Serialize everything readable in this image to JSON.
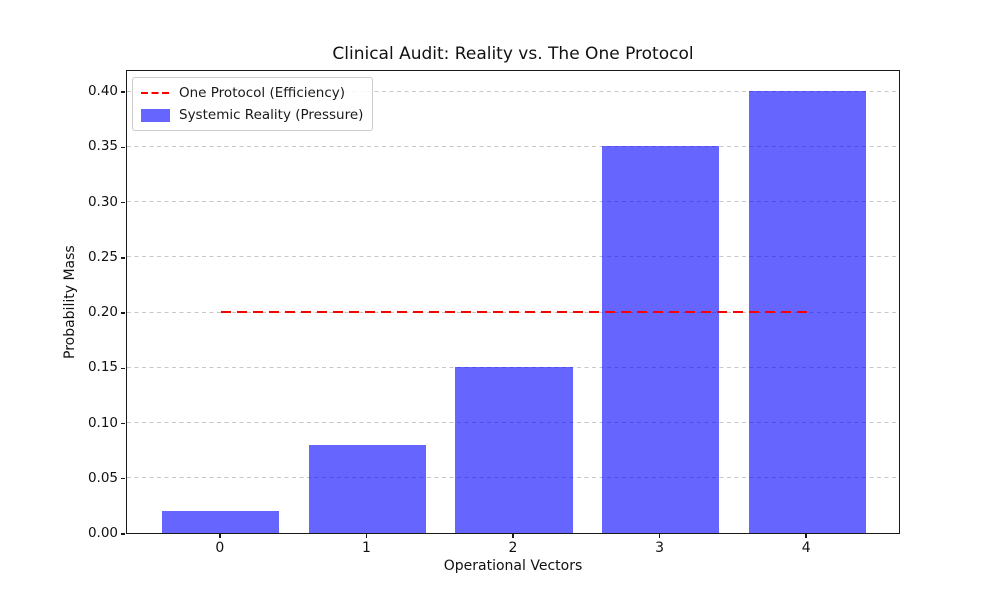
{
  "chart_data": {
    "type": "bar",
    "title": "Clinical Audit: Reality vs. The One Protocol",
    "xlabel": "Operational Vectors",
    "ylabel": "Probability Mass",
    "categories": [
      "0",
      "1",
      "2",
      "3",
      "4"
    ],
    "series": [
      {
        "name": "Systemic Reality (Pressure)",
        "kind": "bar",
        "values": [
          0.02,
          0.08,
          0.15,
          0.35,
          0.4
        ],
        "color": "rgba(0,0,255,0.6)",
        "bar_width": 0.8
      },
      {
        "name": "One Protocol (Efficiency)",
        "kind": "line",
        "linestyle": "dashed",
        "values": [
          0.2,
          0.2,
          0.2,
          0.2,
          0.2
        ],
        "x_range": [
          0,
          4
        ],
        "color": "#ff0000"
      }
    ],
    "yticks": [
      {
        "label": "0.00",
        "value": 0.0
      },
      {
        "label": "0.05",
        "value": 0.05
      },
      {
        "label": "0.10",
        "value": 0.1
      },
      {
        "label": "0.15",
        "value": 0.15
      },
      {
        "label": "0.20",
        "value": 0.2
      },
      {
        "label": "0.25",
        "value": 0.25
      },
      {
        "label": "0.30",
        "value": 0.3
      },
      {
        "label": "0.35",
        "value": 0.35
      },
      {
        "label": "0.40",
        "value": 0.4
      }
    ],
    "ylim": [
      0,
      0.42
    ],
    "xlim": [
      -0.64,
      4.64
    ],
    "grid": {
      "axis": "y",
      "linestyle": "dashed",
      "color": "#c7c7c7"
    },
    "legend": {
      "position": "upper-left",
      "entries": [
        {
          "label": "One Protocol (Efficiency)",
          "marker": "dashed-line",
          "color": "#ff0000"
        },
        {
          "label": "Systemic Reality (Pressure)",
          "marker": "patch",
          "color": "rgba(0,0,255,0.6)"
        }
      ]
    }
  }
}
